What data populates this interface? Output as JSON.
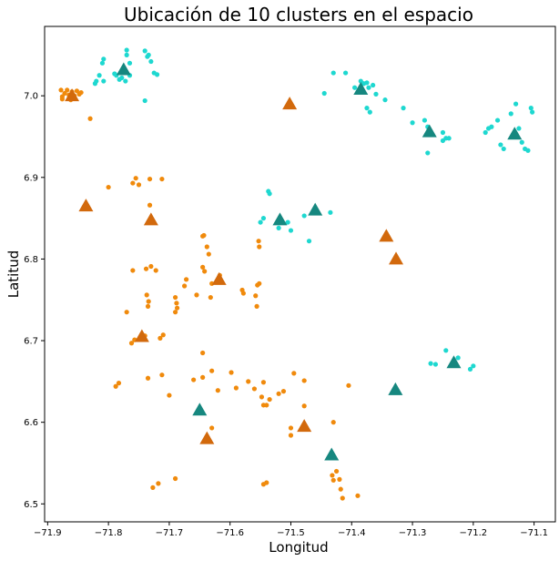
{
  "chart_data": {
    "type": "scatter",
    "title": "Ubicación de 10 clusters en el espacio",
    "xlabel": "Longitud",
    "ylabel": "Latitud",
    "xlim": [
      -71.905,
      -71.065
    ],
    "ylim": [
      6.478,
      7.085
    ],
    "xticks": [
      -71.9,
      -71.8,
      -71.7,
      -71.6,
      -71.5,
      -71.4,
      -71.3,
      -71.2,
      -71.1
    ],
    "xtick_labels": [
      "−71.9",
      "−71.8",
      "−71.7",
      "−71.6",
      "−71.5",
      "−71.4",
      "−71.3",
      "−71.2",
      "−71.1"
    ],
    "yticks": [
      6.5,
      6.6,
      6.7,
      6.8,
      6.9,
      7.0
    ],
    "ytick_labels": [
      "6.5",
      "6.6",
      "6.7",
      "6.8",
      "6.9",
      "7.0"
    ],
    "grid": false,
    "colors": {
      "orange_points": "#f08a0c",
      "cyan_points": "#1ed8d0",
      "orange_centroids": "#d2690c",
      "teal_centroids": "#16877f"
    },
    "series": [
      {
        "marker": "circle",
        "color": "#f08a0c",
        "points": [
          [
            -71.878,
            7.007
          ],
          [
            -71.876,
            6.999
          ],
          [
            -71.872,
            7.003
          ],
          [
            -71.868,
            7.007
          ],
          [
            -71.865,
            7.001
          ],
          [
            -71.862,
            6.995
          ],
          [
            -71.86,
            7.005
          ],
          [
            -71.856,
            7.0
          ],
          [
            -71.852,
            7.006
          ],
          [
            -71.848,
            7.002
          ],
          [
            -71.845,
            7.004
          ],
          [
            -71.83,
            6.972
          ],
          [
            -71.876,
            6.996
          ],
          [
            -71.8,
            6.888
          ],
          [
            -71.76,
            6.893
          ],
          [
            -71.755,
            6.899
          ],
          [
            -71.75,
            6.891
          ],
          [
            -71.732,
            6.866
          ],
          [
            -71.712,
            6.898
          ],
          [
            -71.732,
            6.898
          ],
          [
            -71.76,
            6.786
          ],
          [
            -71.738,
            6.788
          ],
          [
            -71.73,
            6.791
          ],
          [
            -71.722,
            6.786
          ],
          [
            -71.737,
            6.756
          ],
          [
            -71.734,
            6.748
          ],
          [
            -71.735,
            6.742
          ],
          [
            -71.77,
            6.735
          ],
          [
            -71.762,
            6.697
          ],
          [
            -71.757,
            6.701
          ],
          [
            -71.74,
            6.706
          ],
          [
            -71.715,
            6.703
          ],
          [
            -71.71,
            6.707
          ],
          [
            -71.735,
            6.654
          ],
          [
            -71.712,
            6.658
          ],
          [
            -71.788,
            6.644
          ],
          [
            -71.783,
            6.648
          ],
          [
            -71.727,
            6.52
          ],
          [
            -71.718,
            6.525
          ],
          [
            -71.69,
            6.531
          ],
          [
            -71.645,
            6.828
          ],
          [
            -71.643,
            6.829
          ],
          [
            -71.638,
            6.815
          ],
          [
            -71.635,
            6.806
          ],
          [
            -71.645,
            6.79
          ],
          [
            -71.642,
            6.785
          ],
          [
            -71.672,
            6.775
          ],
          [
            -71.675,
            6.767
          ],
          [
            -71.69,
            6.753
          ],
          [
            -71.688,
            6.746
          ],
          [
            -71.687,
            6.74
          ],
          [
            -71.69,
            6.735
          ],
          [
            -71.655,
            6.756
          ],
          [
            -71.632,
            6.753
          ],
          [
            -71.63,
            6.77
          ],
          [
            -71.617,
            6.78
          ],
          [
            -71.58,
            6.762
          ],
          [
            -71.578,
            6.758
          ],
          [
            -71.555,
            6.768
          ],
          [
            -71.552,
            6.77
          ],
          [
            -71.558,
            6.755
          ],
          [
            -71.556,
            6.742
          ],
          [
            -71.553,
            6.822
          ],
          [
            -71.552,
            6.815
          ],
          [
            -71.598,
            6.661
          ],
          [
            -71.645,
            6.685
          ],
          [
            -71.645,
            6.655
          ],
          [
            -71.63,
            6.663
          ],
          [
            -71.66,
            6.652
          ],
          [
            -71.7,
            6.633
          ],
          [
            -71.62,
            6.639
          ],
          [
            -71.63,
            6.593
          ],
          [
            -71.59,
            6.642
          ],
          [
            -71.57,
            6.65
          ],
          [
            -71.56,
            6.641
          ],
          [
            -71.545,
            6.649
          ],
          [
            -71.548,
            6.631
          ],
          [
            -71.545,
            6.621
          ],
          [
            -71.54,
            6.621
          ],
          [
            -71.535,
            6.628
          ],
          [
            -71.52,
            6.635
          ],
          [
            -71.512,
            6.638
          ],
          [
            -71.495,
            6.66
          ],
          [
            -71.478,
            6.651
          ],
          [
            -71.5,
            6.593
          ],
          [
            -71.5,
            6.584
          ],
          [
            -71.478,
            6.62
          ],
          [
            -71.43,
            6.6
          ],
          [
            -71.405,
            6.645
          ],
          [
            -71.425,
            6.54
          ],
          [
            -71.42,
            6.53
          ],
          [
            -71.418,
            6.518
          ],
          [
            -71.432,
            6.535
          ],
          [
            -71.43,
            6.529
          ],
          [
            -71.415,
            6.507
          ],
          [
            -71.39,
            6.51
          ],
          [
            -71.545,
            6.524
          ],
          [
            -71.54,
            6.526
          ]
        ]
      },
      {
        "marker": "circle",
        "color": "#1ed8d0",
        "points": [
          [
            -71.82,
            7.018
          ],
          [
            -71.822,
            7.015
          ],
          [
            -71.815,
            7.025
          ],
          [
            -71.81,
            7.04
          ],
          [
            -71.808,
            7.045
          ],
          [
            -71.808,
            7.018
          ],
          [
            -71.79,
            7.027
          ],
          [
            -71.787,
            7.025
          ],
          [
            -71.782,
            7.02
          ],
          [
            -71.778,
            7.022
          ],
          [
            -71.77,
            7.05
          ],
          [
            -71.77,
            7.056
          ],
          [
            -71.765,
            7.04
          ],
          [
            -71.765,
            7.025
          ],
          [
            -71.772,
            7.018
          ],
          [
            -71.74,
            7.055
          ],
          [
            -71.736,
            7.048
          ],
          [
            -71.734,
            7.05
          ],
          [
            -71.73,
            7.042
          ],
          [
            -71.725,
            7.028
          ],
          [
            -71.72,
            7.026
          ],
          [
            -71.74,
            6.994
          ],
          [
            -71.43,
            7.028
          ],
          [
            -71.41,
            7.028
          ],
          [
            -71.395,
            7.01
          ],
          [
            -71.385,
            7.018
          ],
          [
            -71.38,
            7.015
          ],
          [
            -71.375,
            7.016
          ],
          [
            -71.372,
            7.01
          ],
          [
            -71.365,
            7.013
          ],
          [
            -71.36,
            7.002
          ],
          [
            -71.375,
            6.985
          ],
          [
            -71.37,
            6.98
          ],
          [
            -71.345,
            6.995
          ],
          [
            -71.315,
            6.985
          ],
          [
            -71.445,
            7.003
          ],
          [
            -71.3,
            6.967
          ],
          [
            -71.28,
            6.97
          ],
          [
            -71.275,
            6.962
          ],
          [
            -71.275,
            6.93
          ],
          [
            -71.25,
            6.945
          ],
          [
            -71.25,
            6.955
          ],
          [
            -71.245,
            6.948
          ],
          [
            -71.24,
            6.948
          ],
          [
            -71.18,
            6.955
          ],
          [
            -71.175,
            6.96
          ],
          [
            -71.17,
            6.962
          ],
          [
            -71.16,
            6.97
          ],
          [
            -71.155,
            6.94
          ],
          [
            -71.15,
            6.935
          ],
          [
            -71.138,
            6.978
          ],
          [
            -71.13,
            6.99
          ],
          [
            -71.125,
            6.96
          ],
          [
            -71.12,
            6.943
          ],
          [
            -71.115,
            6.935
          ],
          [
            -71.11,
            6.933
          ],
          [
            -71.105,
            6.985
          ],
          [
            -71.103,
            6.98
          ],
          [
            -71.535,
            6.88
          ],
          [
            -71.537,
            6.883
          ],
          [
            -71.52,
            6.838
          ],
          [
            -71.505,
            6.845
          ],
          [
            -71.5,
            6.835
          ],
          [
            -71.478,
            6.853
          ],
          [
            -71.47,
            6.822
          ],
          [
            -71.435,
            6.857
          ],
          [
            -71.545,
            6.85
          ],
          [
            -71.55,
            6.845
          ],
          [
            -71.27,
            6.672
          ],
          [
            -71.262,
            6.671
          ],
          [
            -71.245,
            6.688
          ],
          [
            -71.225,
            6.679
          ],
          [
            -71.205,
            6.665
          ],
          [
            -71.2,
            6.669
          ]
        ]
      },
      {
        "marker": "triangle",
        "color": "#d2690c",
        "points": [
          [
            -71.86,
            7.0
          ],
          [
            -71.502,
            6.99
          ],
          [
            -71.837,
            6.865
          ],
          [
            -71.73,
            6.848
          ],
          [
            -71.618,
            6.775
          ],
          [
            -71.745,
            6.705
          ],
          [
            -71.343,
            6.828
          ],
          [
            -71.327,
            6.8
          ],
          [
            -71.638,
            6.58
          ],
          [
            -71.478,
            6.595
          ]
        ]
      },
      {
        "marker": "triangle",
        "color": "#16877f",
        "points": [
          [
            -71.775,
            7.032
          ],
          [
            -71.385,
            7.008
          ],
          [
            -71.272,
            6.956
          ],
          [
            -71.132,
            6.953
          ],
          [
            -71.518,
            6.848
          ],
          [
            -71.46,
            6.86
          ],
          [
            -71.232,
            6.673
          ],
          [
            -71.328,
            6.64
          ],
          [
            -71.65,
            6.615
          ],
          [
            -71.433,
            6.56
          ]
        ]
      }
    ]
  }
}
